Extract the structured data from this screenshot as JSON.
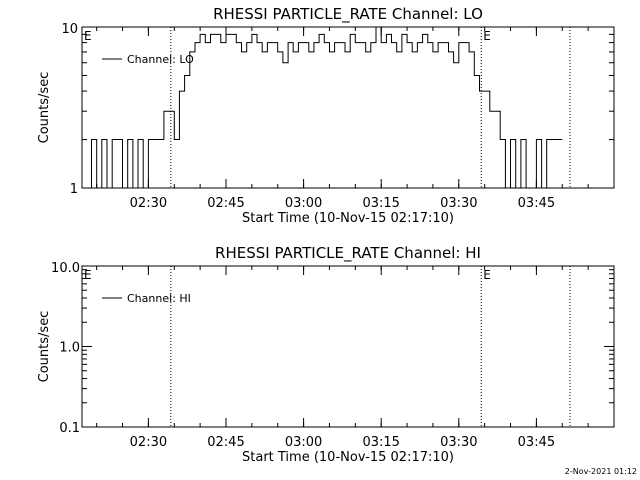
{
  "footer": {
    "timestamp": "2-Nov-2021 01:12"
  },
  "chart_data": [
    {
      "type": "line",
      "title": "RHESSI PARTICLE_RATE Channel: LO",
      "xlabel": "Start Time (10-Nov-15 02:17:10)",
      "ylabel": "Counts/sec",
      "y_scale": "log",
      "ylim": [
        1,
        10
      ],
      "y_ticks": [
        1,
        10
      ],
      "y_tick_labels": [
        "1",
        "10"
      ],
      "xlim": [
        "02:17:10",
        "04:00:00"
      ],
      "x_ticks": [
        "02:30",
        "02:45",
        "03:00",
        "03:15",
        "03:30",
        "03:45"
      ],
      "legend": {
        "placement": "top-left",
        "entries": [
          "Channel: LO"
        ]
      },
      "marker_lines": [
        "02:34:20",
        "03:34:20",
        "03:51:30"
      ],
      "marker_labels": [
        {
          "text": "E",
          "at": "02:17:10"
        },
        {
          "text": "E",
          "at": "03:34:20"
        }
      ],
      "series": [
        {
          "name": "Channel: LO",
          "x": [
            "02:18:00",
            "02:19:00",
            "02:20:00",
            "02:21:00",
            "02:22:00",
            "02:23:00",
            "02:24:00",
            "02:25:00",
            "02:26:00",
            "02:27:00",
            "02:28:00",
            "02:29:00",
            "02:30:00",
            "02:31:00",
            "02:32:00",
            "02:33:00",
            "02:34:00",
            "02:35:00",
            "02:36:00",
            "02:37:00",
            "02:38:00",
            "02:39:00",
            "02:40:00",
            "02:41:00",
            "02:42:00",
            "02:43:00",
            "02:44:00",
            "02:45:00",
            "02:46:00",
            "02:47:00",
            "02:48:00",
            "02:49:00",
            "02:50:00",
            "02:51:00",
            "02:52:00",
            "02:53:00",
            "02:54:00",
            "02:55:00",
            "02:56:00",
            "02:57:00",
            "02:58:00",
            "02:59:00",
            "03:00:00",
            "03:01:00",
            "03:02:00",
            "03:03:00",
            "03:04:00",
            "03:05:00",
            "03:06:00",
            "03:07:00",
            "03:08:00",
            "03:09:00",
            "03:10:00",
            "03:11:00",
            "03:12:00",
            "03:13:00",
            "03:14:00",
            "03:15:00",
            "03:16:00",
            "03:17:00",
            "03:18:00",
            "03:19:00",
            "03:20:00",
            "03:21:00",
            "03:22:00",
            "03:23:00",
            "03:24:00",
            "03:25:00",
            "03:26:00",
            "03:27:00",
            "03:28:00",
            "03:29:00",
            "03:30:00",
            "03:31:00",
            "03:32:00",
            "03:33:00",
            "03:34:00",
            "03:35:00",
            "03:36:00",
            "03:37:00",
            "03:38:00",
            "03:39:00",
            "03:40:00",
            "03:41:00",
            "03:42:00",
            "03:43:00",
            "03:44:00",
            "03:45:00",
            "03:46:00",
            "03:47:00",
            "03:48:00",
            "03:49:00",
            "03:50:00"
          ],
          "values": [
            1,
            2,
            1,
            2,
            1,
            2,
            2,
            1,
            2,
            1,
            2,
            1,
            2,
            2,
            2,
            3,
            3,
            2,
            4,
            5,
            7,
            8,
            9,
            8,
            9,
            9,
            8,
            9,
            9,
            8,
            7,
            8,
            9,
            8,
            7,
            8,
            8,
            7,
            6,
            8,
            7,
            8,
            8,
            7,
            8,
            9,
            8,
            7,
            8,
            8,
            7,
            9,
            8,
            8,
            7,
            8,
            10,
            8,
            9,
            8,
            7,
            9,
            8,
            7,
            8,
            9,
            8,
            7,
            8,
            8,
            7,
            6,
            8,
            8,
            7,
            5,
            4,
            4,
            3,
            3,
            2,
            1,
            2,
            1,
            2,
            1,
            1,
            2,
            1,
            2,
            2,
            2,
            2
          ]
        }
      ]
    },
    {
      "type": "line",
      "title": "RHESSI PARTICLE_RATE Channel: HI",
      "xlabel": "Start Time (10-Nov-15 02:17:10)",
      "ylabel": "Counts/sec",
      "y_scale": "log",
      "ylim": [
        0.1,
        10
      ],
      "y_ticks": [
        0.1,
        1,
        10
      ],
      "y_tick_labels": [
        "0.1",
        "1.0",
        "10.0"
      ],
      "xlim": [
        "02:17:10",
        "04:00:00"
      ],
      "x_ticks": [
        "02:30",
        "02:45",
        "03:00",
        "03:15",
        "03:30",
        "03:45"
      ],
      "legend": {
        "placement": "top-left",
        "entries": [
          "Channel: HI"
        ]
      },
      "marker_lines": [
        "02:34:20",
        "03:34:20",
        "03:51:30"
      ],
      "marker_labels": [
        {
          "text": "E",
          "at": "02:17:10"
        },
        {
          "text": "E",
          "at": "03:34:20"
        }
      ],
      "series": [
        {
          "name": "Channel: HI",
          "x": [],
          "values": []
        }
      ]
    }
  ]
}
